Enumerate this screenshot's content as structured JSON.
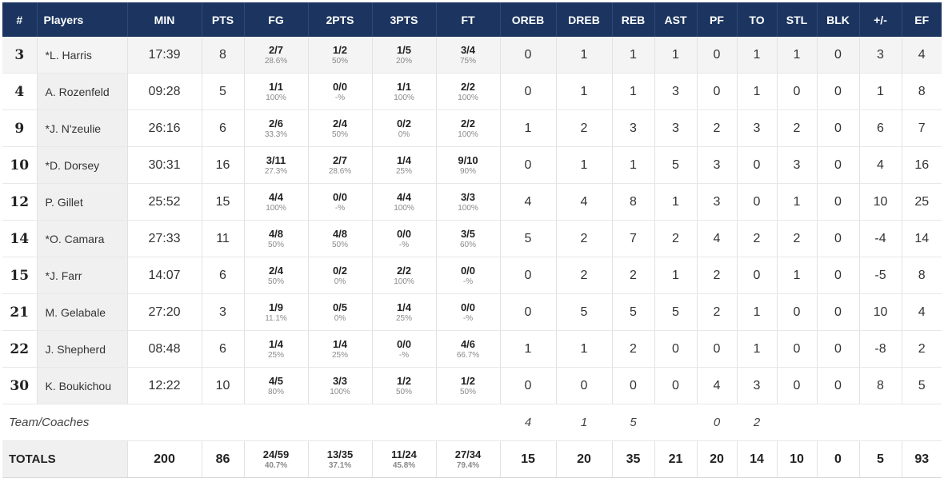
{
  "columns": [
    "#",
    "Players",
    "MIN",
    "PTS",
    "FG",
    "2PTS",
    "3PTS",
    "FT",
    "OREB",
    "DREB",
    "REB",
    "AST",
    "PF",
    "TO",
    "STL",
    "BLK",
    "+/-",
    "EF"
  ],
  "players": [
    {
      "num": "3",
      "name": "*L. Harris",
      "min": "17:39",
      "pts": "8",
      "fg": "2/7",
      "fg_pct": "28.6%",
      "p2": "1/2",
      "p2_pct": "50%",
      "p3": "1/5",
      "p3_pct": "20%",
      "ft": "3/4",
      "ft_pct": "75%",
      "oreb": "0",
      "dreb": "1",
      "reb": "1",
      "ast": "1",
      "pf": "0",
      "to": "1",
      "stl": "1",
      "blk": "0",
      "pm": "3",
      "ef": "4"
    },
    {
      "num": "4",
      "name": "A. Rozenfeld",
      "min": "09:28",
      "pts": "5",
      "fg": "1/1",
      "fg_pct": "100%",
      "p2": "0/0",
      "p2_pct": "-%",
      "p3": "1/1",
      "p3_pct": "100%",
      "ft": "2/2",
      "ft_pct": "100%",
      "oreb": "0",
      "dreb": "1",
      "reb": "1",
      "ast": "3",
      "pf": "0",
      "to": "1",
      "stl": "0",
      "blk": "0",
      "pm": "1",
      "ef": "8"
    },
    {
      "num": "9",
      "name": "*J. N'zeulie",
      "min": "26:16",
      "pts": "6",
      "fg": "2/6",
      "fg_pct": "33.3%",
      "p2": "2/4",
      "p2_pct": "50%",
      "p3": "0/2",
      "p3_pct": "0%",
      "ft": "2/2",
      "ft_pct": "100%",
      "oreb": "1",
      "dreb": "2",
      "reb": "3",
      "ast": "3",
      "pf": "2",
      "to": "3",
      "stl": "2",
      "blk": "0",
      "pm": "6",
      "ef": "7"
    },
    {
      "num": "10",
      "name": "*D. Dorsey",
      "min": "30:31",
      "pts": "16",
      "fg": "3/11",
      "fg_pct": "27.3%",
      "p2": "2/7",
      "p2_pct": "28.6%",
      "p3": "1/4",
      "p3_pct": "25%",
      "ft": "9/10",
      "ft_pct": "90%",
      "oreb": "0",
      "dreb": "1",
      "reb": "1",
      "ast": "5",
      "pf": "3",
      "to": "0",
      "stl": "3",
      "blk": "0",
      "pm": "4",
      "ef": "16"
    },
    {
      "num": "12",
      "name": "P. Gillet",
      "min": "25:52",
      "pts": "15",
      "fg": "4/4",
      "fg_pct": "100%",
      "p2": "0/0",
      "p2_pct": "-%",
      "p3": "4/4",
      "p3_pct": "100%",
      "ft": "3/3",
      "ft_pct": "100%",
      "oreb": "4",
      "dreb": "4",
      "reb": "8",
      "ast": "1",
      "pf": "3",
      "to": "0",
      "stl": "1",
      "blk": "0",
      "pm": "10",
      "ef": "25"
    },
    {
      "num": "14",
      "name": "*O. Camara",
      "min": "27:33",
      "pts": "11",
      "fg": "4/8",
      "fg_pct": "50%",
      "p2": "4/8",
      "p2_pct": "50%",
      "p3": "0/0",
      "p3_pct": "-%",
      "ft": "3/5",
      "ft_pct": "60%",
      "oreb": "5",
      "dreb": "2",
      "reb": "7",
      "ast": "2",
      "pf": "4",
      "to": "2",
      "stl": "2",
      "blk": "0",
      "pm": "-4",
      "ef": "14"
    },
    {
      "num": "15",
      "name": "*J. Farr",
      "min": "14:07",
      "pts": "6",
      "fg": "2/4",
      "fg_pct": "50%",
      "p2": "0/2",
      "p2_pct": "0%",
      "p3": "2/2",
      "p3_pct": "100%",
      "ft": "0/0",
      "ft_pct": "-%",
      "oreb": "0",
      "dreb": "2",
      "reb": "2",
      "ast": "1",
      "pf": "2",
      "to": "0",
      "stl": "1",
      "blk": "0",
      "pm": "-5",
      "ef": "8"
    },
    {
      "num": "21",
      "name": "M. Gelabale",
      "min": "27:20",
      "pts": "3",
      "fg": "1/9",
      "fg_pct": "11.1%",
      "p2": "0/5",
      "p2_pct": "0%",
      "p3": "1/4",
      "p3_pct": "25%",
      "ft": "0/0",
      "ft_pct": "-%",
      "oreb": "0",
      "dreb": "5",
      "reb": "5",
      "ast": "5",
      "pf": "2",
      "to": "1",
      "stl": "0",
      "blk": "0",
      "pm": "10",
      "ef": "4"
    },
    {
      "num": "22",
      "name": "J. Shepherd",
      "min": "08:48",
      "pts": "6",
      "fg": "1/4",
      "fg_pct": "25%",
      "p2": "1/4",
      "p2_pct": "25%",
      "p3": "0/0",
      "p3_pct": "-%",
      "ft": "4/6",
      "ft_pct": "66.7%",
      "oreb": "1",
      "dreb": "1",
      "reb": "2",
      "ast": "0",
      "pf": "0",
      "to": "1",
      "stl": "0",
      "blk": "0",
      "pm": "-8",
      "ef": "2"
    },
    {
      "num": "30",
      "name": "K. Boukichou",
      "min": "12:22",
      "pts": "10",
      "fg": "4/5",
      "fg_pct": "80%",
      "p2": "3/3",
      "p2_pct": "100%",
      "p3": "1/2",
      "p3_pct": "50%",
      "ft": "1/2",
      "ft_pct": "50%",
      "oreb": "0",
      "dreb": "0",
      "reb": "0",
      "ast": "0",
      "pf": "4",
      "to": "3",
      "stl": "0",
      "blk": "0",
      "pm": "8",
      "ef": "5"
    }
  ],
  "team_row": {
    "label": "Team/Coaches",
    "oreb": "4",
    "dreb": "1",
    "reb": "5",
    "ast": "",
    "pf": "0",
    "to": "2"
  },
  "totals": {
    "label": "TOTALS",
    "min": "200",
    "pts": "86",
    "fg": "24/59",
    "fg_pct": "40.7%",
    "p2": "13/35",
    "p2_pct": "37.1%",
    "p3": "11/24",
    "p3_pct": "45.8%",
    "ft": "27/34",
    "ft_pct": "79.4%",
    "oreb": "15",
    "dreb": "20",
    "reb": "35",
    "ast": "21",
    "pf": "20",
    "to": "14",
    "stl": "10",
    "blk": "0",
    "pm": "5",
    "ef": "93"
  },
  "colors": {
    "header_bg": "#1b3560",
    "header_text": "#ffffff",
    "alt_row_bg": "#f4f4f4",
    "player_cell_bg": "#f0f0f0"
  }
}
